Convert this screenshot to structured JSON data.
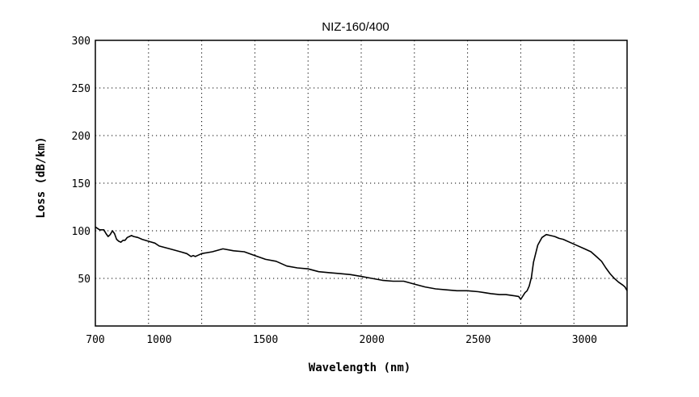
{
  "chart_data": {
    "type": "line",
    "title": "NIZ-160/400",
    "xlabel": "Wavelength (nm)",
    "ylabel": "Loss (dB/km)",
    "xlim": [
      700,
      3200
    ],
    "ylim": [
      0,
      300
    ],
    "x_ticks": [
      700,
      1000,
      1500,
      2000,
      2500,
      3000
    ],
    "x_tick_labels": [
      "700",
      "1000",
      "1500",
      "2000",
      "2500",
      "3000"
    ],
    "y_ticks": [
      50,
      100,
      150,
      200,
      250,
      300
    ],
    "y_tick_labels": [
      "50",
      "100",
      "150",
      "200",
      "250",
      "300"
    ],
    "grid": true,
    "colors": {
      "line": "#000000",
      "grid": "#000000",
      "background": "#ffffff"
    },
    "series": [
      {
        "x": [
          700,
          720,
          740,
          750,
          760,
          770,
          780,
          790,
          800,
          810,
          820,
          830,
          840,
          850,
          860,
          870,
          880,
          900,
          920,
          950,
          980,
          1000,
          1050,
          1100,
          1130,
          1150,
          1160,
          1170,
          1180,
          1200,
          1250,
          1300,
          1350,
          1400,
          1450,
          1500,
          1550,
          1600,
          1650,
          1700,
          1750,
          1800,
          1850,
          1900,
          1950,
          2000,
          2050,
          2100,
          2150,
          2200,
          2250,
          2300,
          2350,
          2400,
          2450,
          2500,
          2530,
          2560,
          2600,
          2630,
          2660,
          2690,
          2700,
          2720,
          2730,
          2740,
          2750,
          2760,
          2780,
          2800,
          2820,
          2840,
          2860,
          2880,
          2900,
          2930,
          2960,
          3000,
          3030,
          3060,
          3080,
          3100,
          3120,
          3140,
          3160,
          3180,
          3190,
          3200
        ],
        "y": [
          104,
          101,
          101,
          97,
          94,
          96,
          100,
          97,
          91,
          89,
          88,
          90,
          90,
          93,
          94,
          95,
          94,
          93,
          91,
          89,
          87,
          84,
          81,
          78,
          76,
          73,
          74,
          73,
          74,
          76,
          78,
          81,
          79,
          78,
          74,
          70,
          68,
          63,
          61,
          60,
          57,
          56,
          55,
          54,
          52,
          50,
          48,
          47,
          47,
          44,
          41,
          39,
          38,
          37,
          37,
          36,
          35,
          34,
          33,
          33,
          32,
          31,
          28,
          35,
          37,
          42,
          51,
          67,
          85,
          93,
          96,
          95,
          94,
          92,
          91,
          88,
          85,
          81,
          78,
          72,
          68,
          61,
          55,
          50,
          46,
          43,
          41,
          37
        ]
      }
    ]
  }
}
